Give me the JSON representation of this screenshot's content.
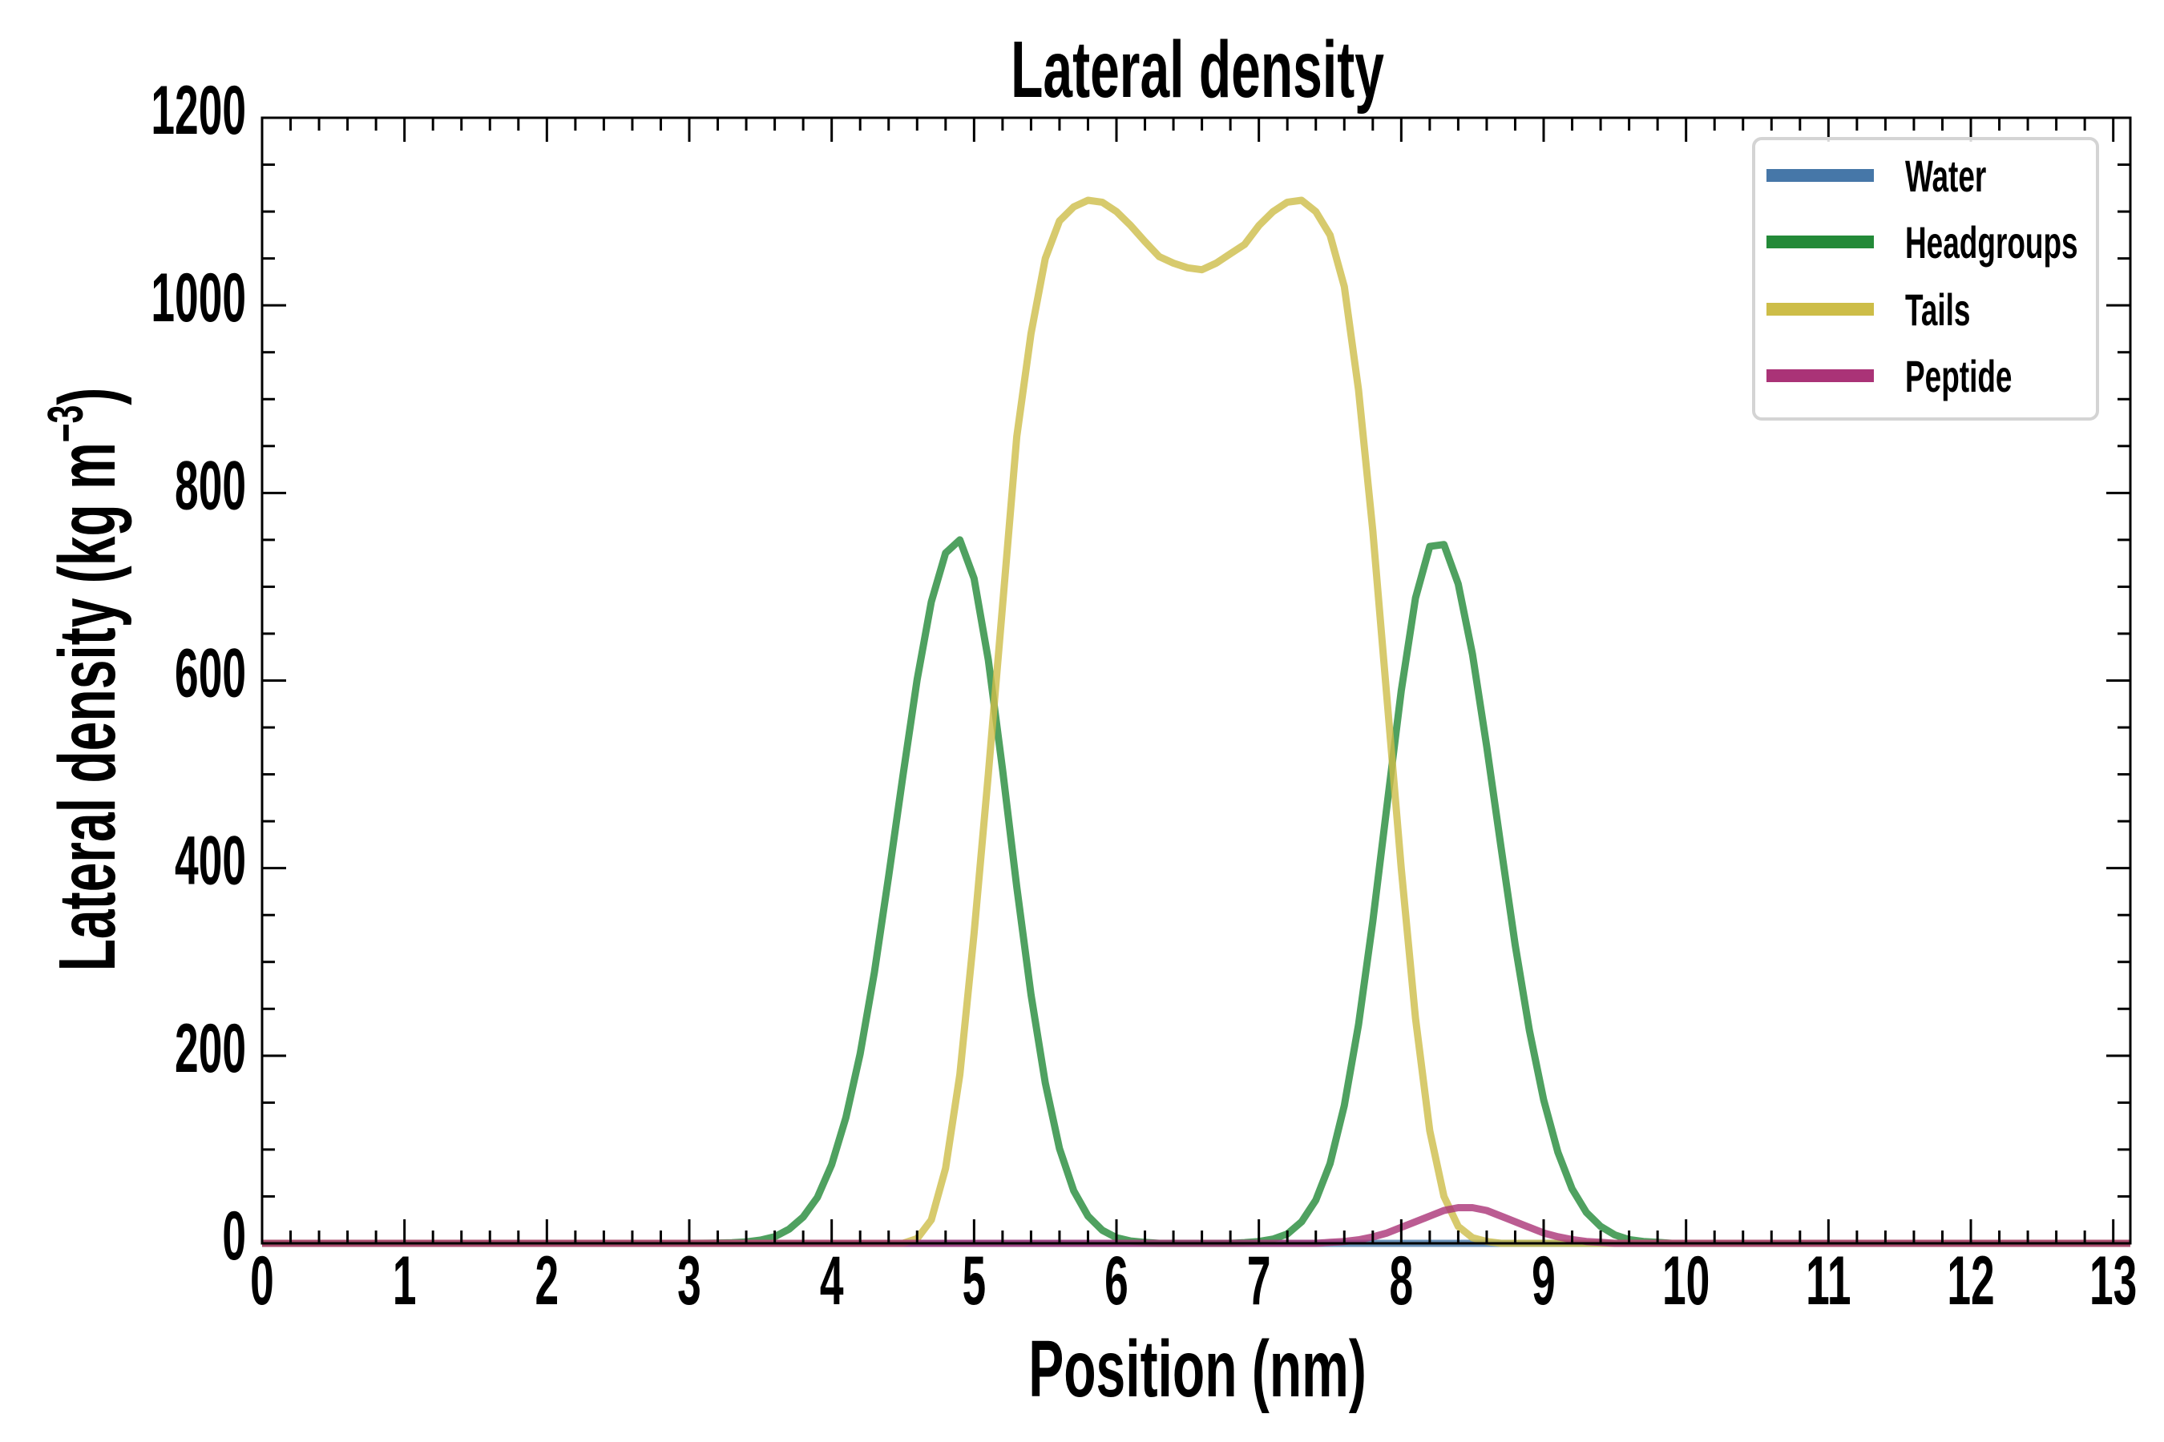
{
  "chart_data": {
    "type": "line",
    "title": "Lateral density",
    "xlabel": "Position (nm)",
    "ylabel_main": "Lateral density (kg m",
    "ylabel_sup": "−3",
    "ylabel_close": ")",
    "xlim": [
      0,
      13.12
    ],
    "ylim": [
      0,
      1200
    ],
    "x_ticks": [
      0,
      1,
      2,
      3,
      4,
      5,
      6,
      7,
      8,
      9,
      10,
      11,
      12,
      13
    ],
    "x_tick_labels": [
      "0",
      "1",
      "2",
      "3",
      "4",
      "5",
      "6",
      "7",
      "8",
      "9",
      "10",
      "11",
      "12",
      "13"
    ],
    "x_minor_step": 0.2,
    "y_ticks": [
      0,
      200,
      400,
      600,
      800,
      1000,
      1200
    ],
    "y_tick_labels": [
      "0",
      "200",
      "400",
      "600",
      "800",
      "1000",
      "1200"
    ],
    "y_minor_step": 50,
    "grid": false,
    "legend_position": "top-right",
    "x": [
      0,
      3.0,
      3.1,
      3.2,
      3.3,
      3.4,
      3.5,
      3.6,
      3.7,
      3.8,
      3.9,
      4.0,
      4.1,
      4.2,
      4.3,
      4.4,
      4.5,
      4.6,
      4.7,
      4.8,
      4.9,
      5.0,
      5.1,
      5.2,
      5.3,
      5.4,
      5.5,
      5.6,
      5.7,
      5.8,
      5.9,
      6.0,
      6.1,
      6.2,
      6.3,
      6.4,
      6.5,
      6.6,
      6.7,
      6.8,
      6.9,
      7.0,
      7.1,
      7.2,
      7.3,
      7.4,
      7.5,
      7.6,
      7.7,
      7.8,
      7.9,
      8.0,
      8.1,
      8.2,
      8.3,
      8.4,
      8.5,
      8.6,
      8.7,
      8.8,
      8.9,
      9.0,
      9.1,
      9.2,
      9.3,
      9.4,
      9.5,
      9.6,
      9.7,
      9.8,
      9.9,
      10.0,
      13.12
    ],
    "series": [
      {
        "name": "Water",
        "color": "#4677a8",
        "values": [
          0,
          0,
          0,
          0,
          0,
          0,
          0,
          0,
          0,
          0,
          0,
          0,
          0,
          0,
          0,
          0,
          0,
          0,
          0,
          0,
          0,
          0,
          0,
          0,
          0,
          0,
          0,
          0,
          0,
          0,
          0,
          0,
          0,
          0,
          0,
          0,
          0,
          0,
          0,
          0,
          0,
          0,
          0,
          0,
          0,
          0,
          0,
          0,
          0,
          0,
          0,
          0,
          0,
          0,
          0,
          0,
          0,
          0,
          0,
          0,
          0,
          0,
          0,
          0,
          0,
          0,
          0,
          0,
          0,
          0,
          0,
          0,
          0
        ]
      },
      {
        "name": "Headgroups",
        "color": "#238a38",
        "values": [
          0,
          0,
          0.1,
          0.3,
          0.6,
          1.5,
          3.4,
          7,
          15,
          28,
          49,
          84,
          134,
          202,
          289,
          391,
          498,
          601,
          684,
          736,
          750,
          709,
          622,
          505,
          380,
          265,
          171,
          101,
          56,
          29,
          14,
          6,
          2.5,
          1,
          0,
          0,
          0,
          0,
          0,
          0,
          0.8,
          2,
          4.5,
          10,
          23,
          46,
          85,
          147,
          233,
          343,
          467,
          589,
          688,
          743,
          745,
          703,
          628,
          530,
          423,
          318,
          227,
          153,
          97,
          58,
          33,
          18,
          9,
          4,
          2,
          1,
          0,
          0,
          0
        ]
      },
      {
        "name": "Tails",
        "color": "#cdbd48",
        "values": [
          0,
          0,
          0,
          0,
          0,
          0,
          0,
          0,
          0,
          0,
          0,
          0,
          0,
          0,
          0,
          0,
          0,
          5,
          25,
          80,
          180,
          330,
          500,
          680,
          860,
          970,
          1050,
          1090,
          1105,
          1112,
          1110,
          1100,
          1085,
          1068,
          1052,
          1045,
          1040,
          1038,
          1045,
          1055,
          1065,
          1085,
          1100,
          1110,
          1112,
          1100,
          1075,
          1020,
          910,
          760,
          580,
          400,
          240,
          120,
          50,
          18,
          6,
          2,
          0,
          0,
          0,
          0,
          0,
          0,
          0,
          0,
          0,
          0,
          0,
          0,
          0,
          0,
          0
        ]
      },
      {
        "name": "Peptide",
        "color": "#aa3377",
        "values": [
          0,
          0,
          0,
          0,
          0,
          0,
          0,
          0,
          0,
          0,
          0,
          0,
          0,
          0,
          0,
          0,
          0,
          0,
          0,
          0,
          0,
          0,
          0,
          0,
          0,
          0,
          0,
          0,
          0,
          0,
          0,
          0,
          0,
          0,
          0,
          0,
          0,
          0,
          0,
          0,
          0,
          0,
          0,
          0,
          0,
          0,
          1,
          2,
          3.8,
          6.8,
          11,
          17,
          23,
          29,
          35,
          38,
          38,
          35,
          29,
          23,
          17,
          11,
          7,
          4,
          2,
          1,
          0,
          0,
          0,
          0,
          0,
          0,
          0
        ]
      }
    ]
  }
}
